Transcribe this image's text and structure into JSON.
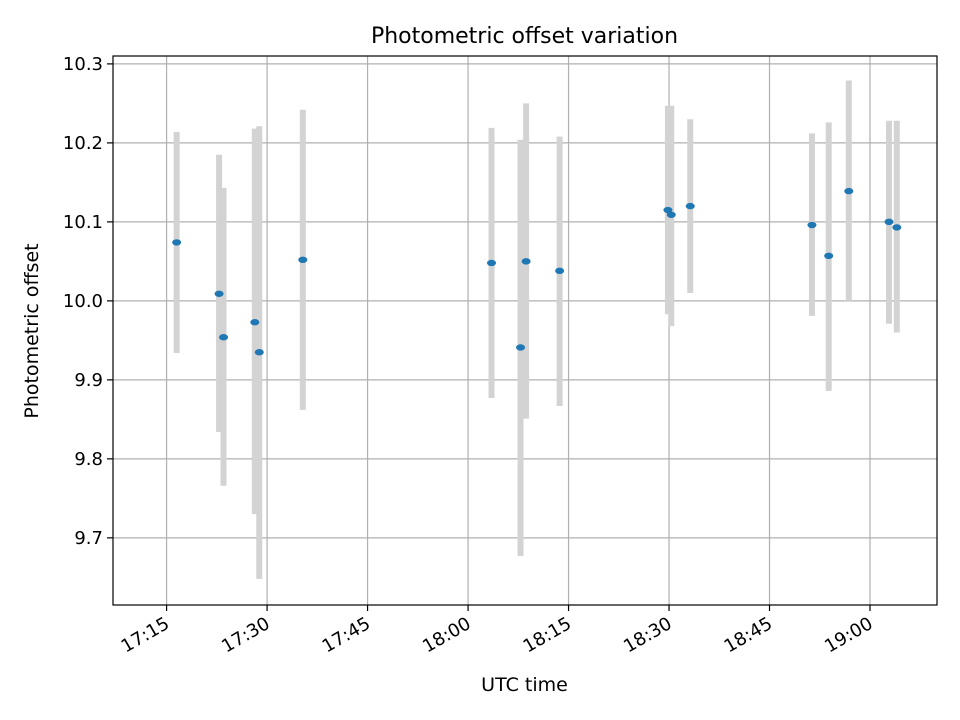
{
  "chart_data": {
    "type": "scatter",
    "title": "Photometric offset variation",
    "xlabel": "UTC time",
    "ylabel": "Photometric offset",
    "xlim": [
      "17:07",
      "19:10"
    ],
    "ylim": [
      9.615,
      10.31
    ],
    "x_ticks": [
      "17:15",
      "17:30",
      "17:45",
      "18:00",
      "18:15",
      "18:30",
      "18:45",
      "19:00"
    ],
    "y_ticks": [
      "9.7",
      "9.8",
      "9.9",
      "10.0",
      "10.1",
      "10.2",
      "10.3"
    ],
    "grid": true,
    "legend": "none",
    "colors": {
      "point": "#1f77b4",
      "errorbar": "#d3d3d3",
      "grid": "#b0b0b0"
    },
    "points": [
      {
        "time": "17:16:30",
        "value": 10.074,
        "lower": 9.934,
        "upper": 10.214
      },
      {
        "time": "17:22:50",
        "value": 10.009,
        "lower": 9.834,
        "upper": 10.185
      },
      {
        "time": "17:23:30",
        "value": 9.954,
        "lower": 9.766,
        "upper": 10.143
      },
      {
        "time": "17:28:10",
        "value": 9.973,
        "lower": 9.73,
        "upper": 10.218
      },
      {
        "time": "17:28:50",
        "value": 9.935,
        "lower": 9.648,
        "upper": 10.221
      },
      {
        "time": "17:35:20",
        "value": 10.052,
        "lower": 9.862,
        "upper": 10.242
      },
      {
        "time": "18:03:30",
        "value": 10.048,
        "lower": 9.877,
        "upper": 10.219
      },
      {
        "time": "18:07:50",
        "value": 9.941,
        "lower": 9.677,
        "upper": 10.204
      },
      {
        "time": "18:08:40",
        "value": 10.05,
        "lower": 9.851,
        "upper": 10.25
      },
      {
        "time": "18:13:40",
        "value": 10.038,
        "lower": 9.867,
        "upper": 10.208
      },
      {
        "time": "18:29:50",
        "value": 10.115,
        "lower": 9.983,
        "upper": 10.247
      },
      {
        "time": "18:30:20",
        "value": 10.109,
        "lower": 9.968,
        "upper": 10.247
      },
      {
        "time": "18:33:10",
        "value": 10.12,
        "lower": 10.01,
        "upper": 10.23
      },
      {
        "time": "18:51:20",
        "value": 10.096,
        "lower": 9.981,
        "upper": 10.212
      },
      {
        "time": "18:53:50",
        "value": 10.057,
        "lower": 9.886,
        "upper": 10.226
      },
      {
        "time": "18:56:50",
        "value": 10.139,
        "lower": 10.0,
        "upper": 10.279
      },
      {
        "time": "19:02:50",
        "value": 10.1,
        "lower": 9.971,
        "upper": 10.228
      },
      {
        "time": "19:04:00",
        "value": 10.093,
        "lower": 9.96,
        "upper": 10.228
      }
    ]
  }
}
